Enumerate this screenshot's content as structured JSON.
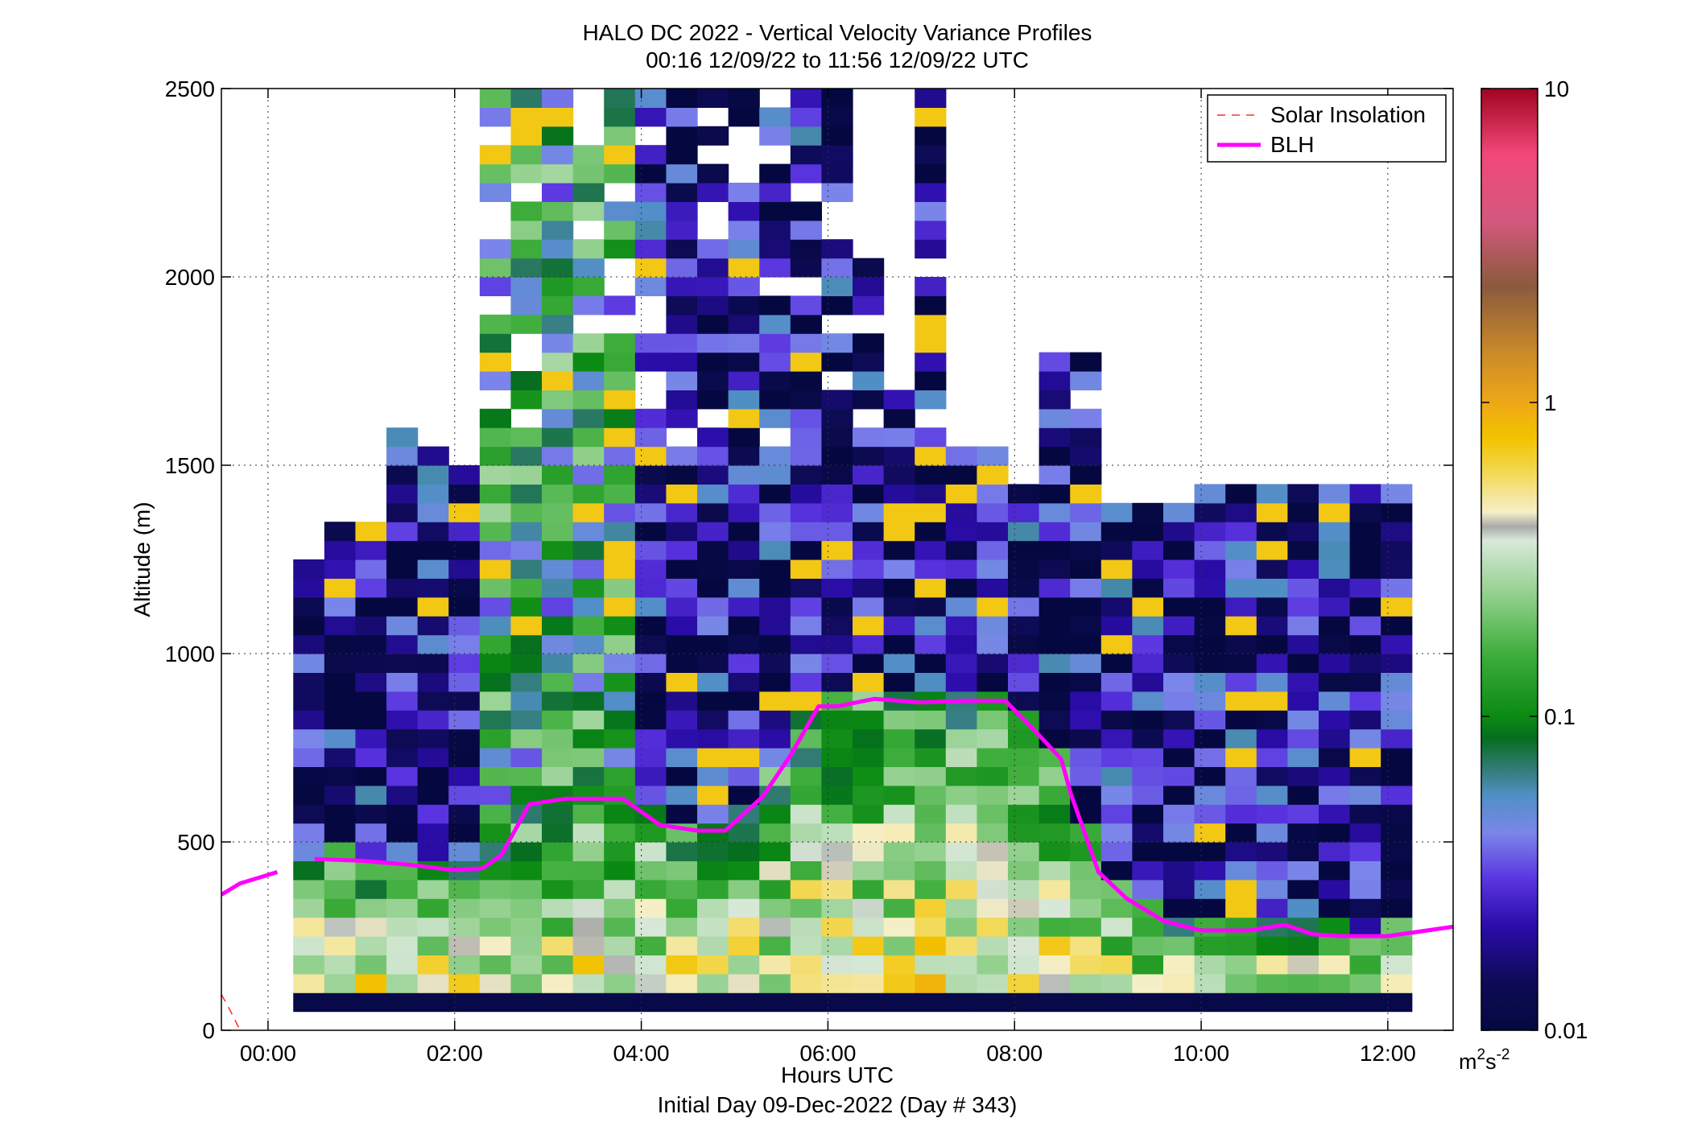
{
  "chart_data": {
    "type": "heatmap",
    "title": "HALO DC 2022 - Vertical Velocity Variance Profiles",
    "subtitle": "00:16 12/09/22 to 11:56 12/09/22  UTC",
    "xlabel": "Hours UTC",
    "xlabel2": "Initial Day 09-Dec-2022 (Day # 343)",
    "ylabel": "Altitude (m)",
    "xlim": [
      -0.5,
      12.7
    ],
    "ylim": [
      0,
      2500
    ],
    "x_ticks": [
      0,
      2,
      4,
      6,
      8,
      10,
      12
    ],
    "x_tick_labels": [
      "00:00",
      "02:00",
      "04:00",
      "06:00",
      "08:00",
      "10:00",
      "12:00"
    ],
    "y_ticks": [
      0,
      500,
      1000,
      1500,
      2000,
      2500
    ],
    "y_tick_labels": [
      "0",
      "500",
      "1000",
      "1500",
      "2000",
      "2500"
    ],
    "grid": true,
    "legend_position": "top-right",
    "legend": [
      "Solar Insolation",
      "BLH"
    ],
    "colorbar": {
      "scale": "log",
      "range": [
        0.01,
        10
      ],
      "ticks": [
        0.01,
        0.1,
        1,
        10
      ],
      "tick_labels": [
        "0.01",
        "0.1",
        "1",
        "10"
      ],
      "unit_base": "m",
      "unit_sup1": "2",
      "unit_mid": "s",
      "unit_sup2": "-2"
    },
    "heatmap": {
      "time_start_hours": 0.27,
      "time_end_hours": 11.93,
      "time_step_hours": 0.333,
      "altitude_bin_m": 50,
      "lowest_altitude_m": 100,
      "value_unit": "m2 s-2",
      "note_on_values": "approximate variance per cell, read from colour"
    },
    "series": [
      {
        "name": "BLH",
        "color": "#ff00ff",
        "x": [
          -0.5,
          -0.3,
          -0.1,
          0.1,
          0.5,
          1.0,
          1.5,
          2.0,
          2.3,
          2.5,
          2.8,
          3.2,
          3.8,
          4.2,
          4.6,
          4.9,
          5.3,
          5.6,
          5.9,
          6.1,
          6.5,
          7.0,
          7.5,
          7.9,
          8.2,
          8.5,
          8.6,
          8.9,
          9.2,
          9.6,
          10.0,
          10.5,
          10.9,
          11.2,
          11.5,
          12.0,
          12.7
        ],
        "y": [
          360,
          390,
          405,
          420,
          455,
          450,
          440,
          425,
          430,
          465,
          600,
          615,
          615,
          545,
          530,
          530,
          620,
          730,
          860,
          860,
          880,
          870,
          875,
          875,
          800,
          720,
          630,
          420,
          350,
          290,
          265,
          265,
          280,
          255,
          250,
          250,
          275
        ]
      },
      {
        "name": "Solar Insolation",
        "color": "#ff3333",
        "x": [
          -0.5,
          -0.4,
          -0.3
        ],
        "y": [
          95,
          50,
          0
        ]
      }
    ]
  }
}
